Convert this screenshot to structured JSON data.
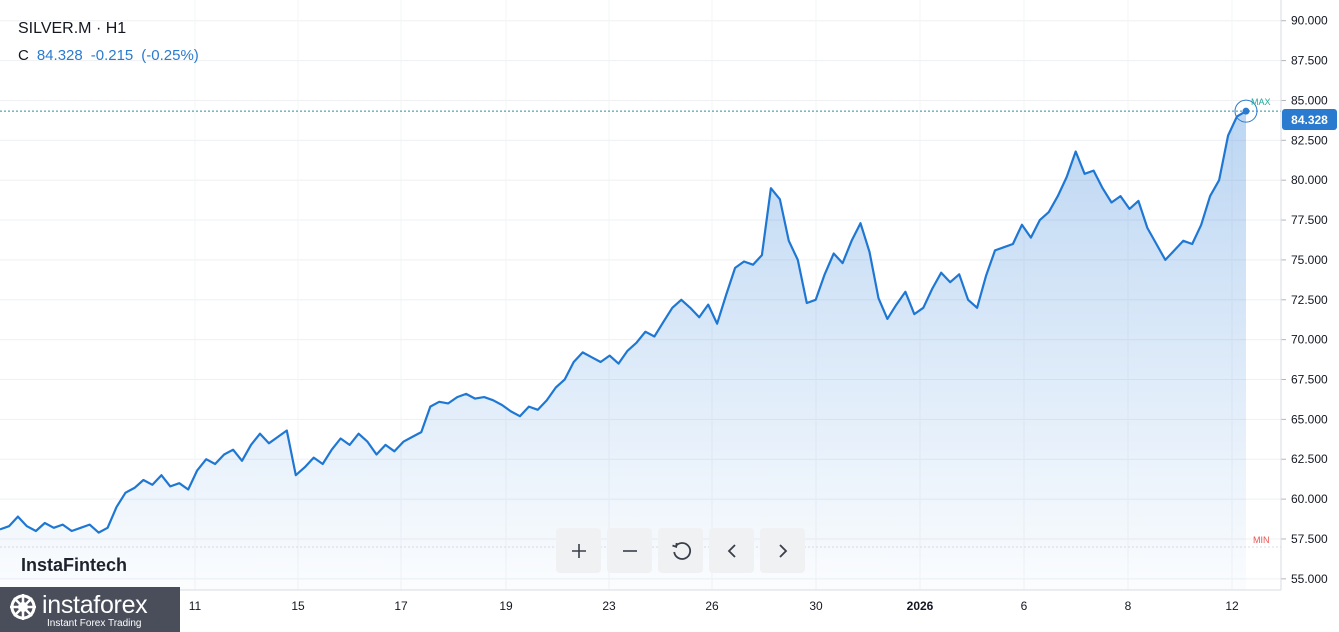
{
  "legend": {
    "symbol": "SILVER.M · H1",
    "close_label": "C",
    "close_value": "84.328",
    "change": "-0.215",
    "change_pct": "(-0.25%)"
  },
  "watermark": "InstaFintech",
  "logo": {
    "name": "instaforex",
    "tagline": "Instant Forex Trading"
  },
  "current_price_label": "84.328",
  "markers": {
    "max": "MAX",
    "min": "MIN"
  },
  "toolbar": {
    "zoom_in": "+",
    "zoom_out": "−"
  },
  "colors": {
    "line": "#1f77d4",
    "accent": "#2a7bd0",
    "max": "#26a69a",
    "min": "#ef5350"
  },
  "icons": [
    "plus-icon",
    "minus-icon",
    "reset-icon",
    "chevron-left-icon",
    "chevron-right-icon"
  ],
  "chart_data": {
    "type": "area",
    "x_tick_labels": [
      "11",
      "15",
      "17",
      "19",
      "23",
      "26",
      "30",
      "2026",
      "6",
      "8",
      "12"
    ],
    "bold_tick": "2026",
    "y_tick_labels": [
      "90.000",
      "87.500",
      "85.000",
      "82.500",
      "80.000",
      "77.500",
      "75.000",
      "72.500",
      "70.000",
      "67.500",
      "65.000",
      "62.500",
      "60.000",
      "57.500",
      "55.000"
    ],
    "y_ticks": [
      90,
      87.5,
      85,
      82.5,
      80,
      77.5,
      75,
      72.5,
      70,
      67.5,
      65,
      62.5,
      60,
      57.5,
      55
    ],
    "ylim": [
      54.3,
      91.3
    ],
    "last_value": 84.328,
    "max_value": 84.33,
    "min_value": 57.0,
    "series": [
      {
        "values": [
          58.1,
          58.3,
          58.9,
          58.3,
          58.0,
          58.5,
          58.2,
          58.4,
          58.0,
          58.2,
          58.4,
          57.9,
          58.2,
          59.5,
          60.4,
          60.7,
          61.2,
          60.9,
          61.5,
          60.8,
          61.0,
          60.6,
          61.8,
          62.5,
          62.2,
          62.8,
          63.1,
          62.4,
          63.4,
          64.1,
          63.5,
          63.9,
          64.3,
          61.5,
          62.0,
          62.6,
          62.2,
          63.1,
          63.8,
          63.4,
          64.1,
          63.6,
          62.8,
          63.4,
          63.0,
          63.6,
          63.9,
          64.2,
          65.8,
          66.1,
          66.0,
          66.4,
          66.6,
          66.3,
          66.4,
          66.2,
          65.9,
          65.5,
          65.2,
          65.8,
          65.6,
          66.2,
          67.0,
          67.5,
          68.6,
          69.2,
          68.9,
          68.6,
          69.0,
          68.5,
          69.3,
          69.8,
          70.5,
          70.2,
          71.1,
          72.0,
          72.5,
          72.0,
          71.4,
          72.2,
          71.0,
          72.8,
          74.5,
          74.9,
          74.7,
          75.3,
          79.5,
          78.8,
          76.2,
          75.0,
          72.3,
          72.5,
          74.1,
          75.4,
          74.8,
          76.2,
          77.3,
          75.5,
          72.6,
          71.3,
          72.2,
          73.0,
          71.6,
          72.0,
          73.2,
          74.2,
          73.6,
          74.1,
          72.5,
          72.0,
          74.0,
          75.6,
          75.8,
          76.0,
          77.2,
          76.4,
          77.5,
          78.0,
          79.0,
          80.2,
          81.8,
          80.4,
          80.6,
          79.5,
          78.6,
          79.0,
          78.2,
          78.7,
          77.0,
          76.0,
          75.0,
          75.6,
          76.2,
          76.0,
          77.2,
          79.0,
          80.0,
          82.8,
          84.0,
          84.328
        ]
      }
    ]
  }
}
